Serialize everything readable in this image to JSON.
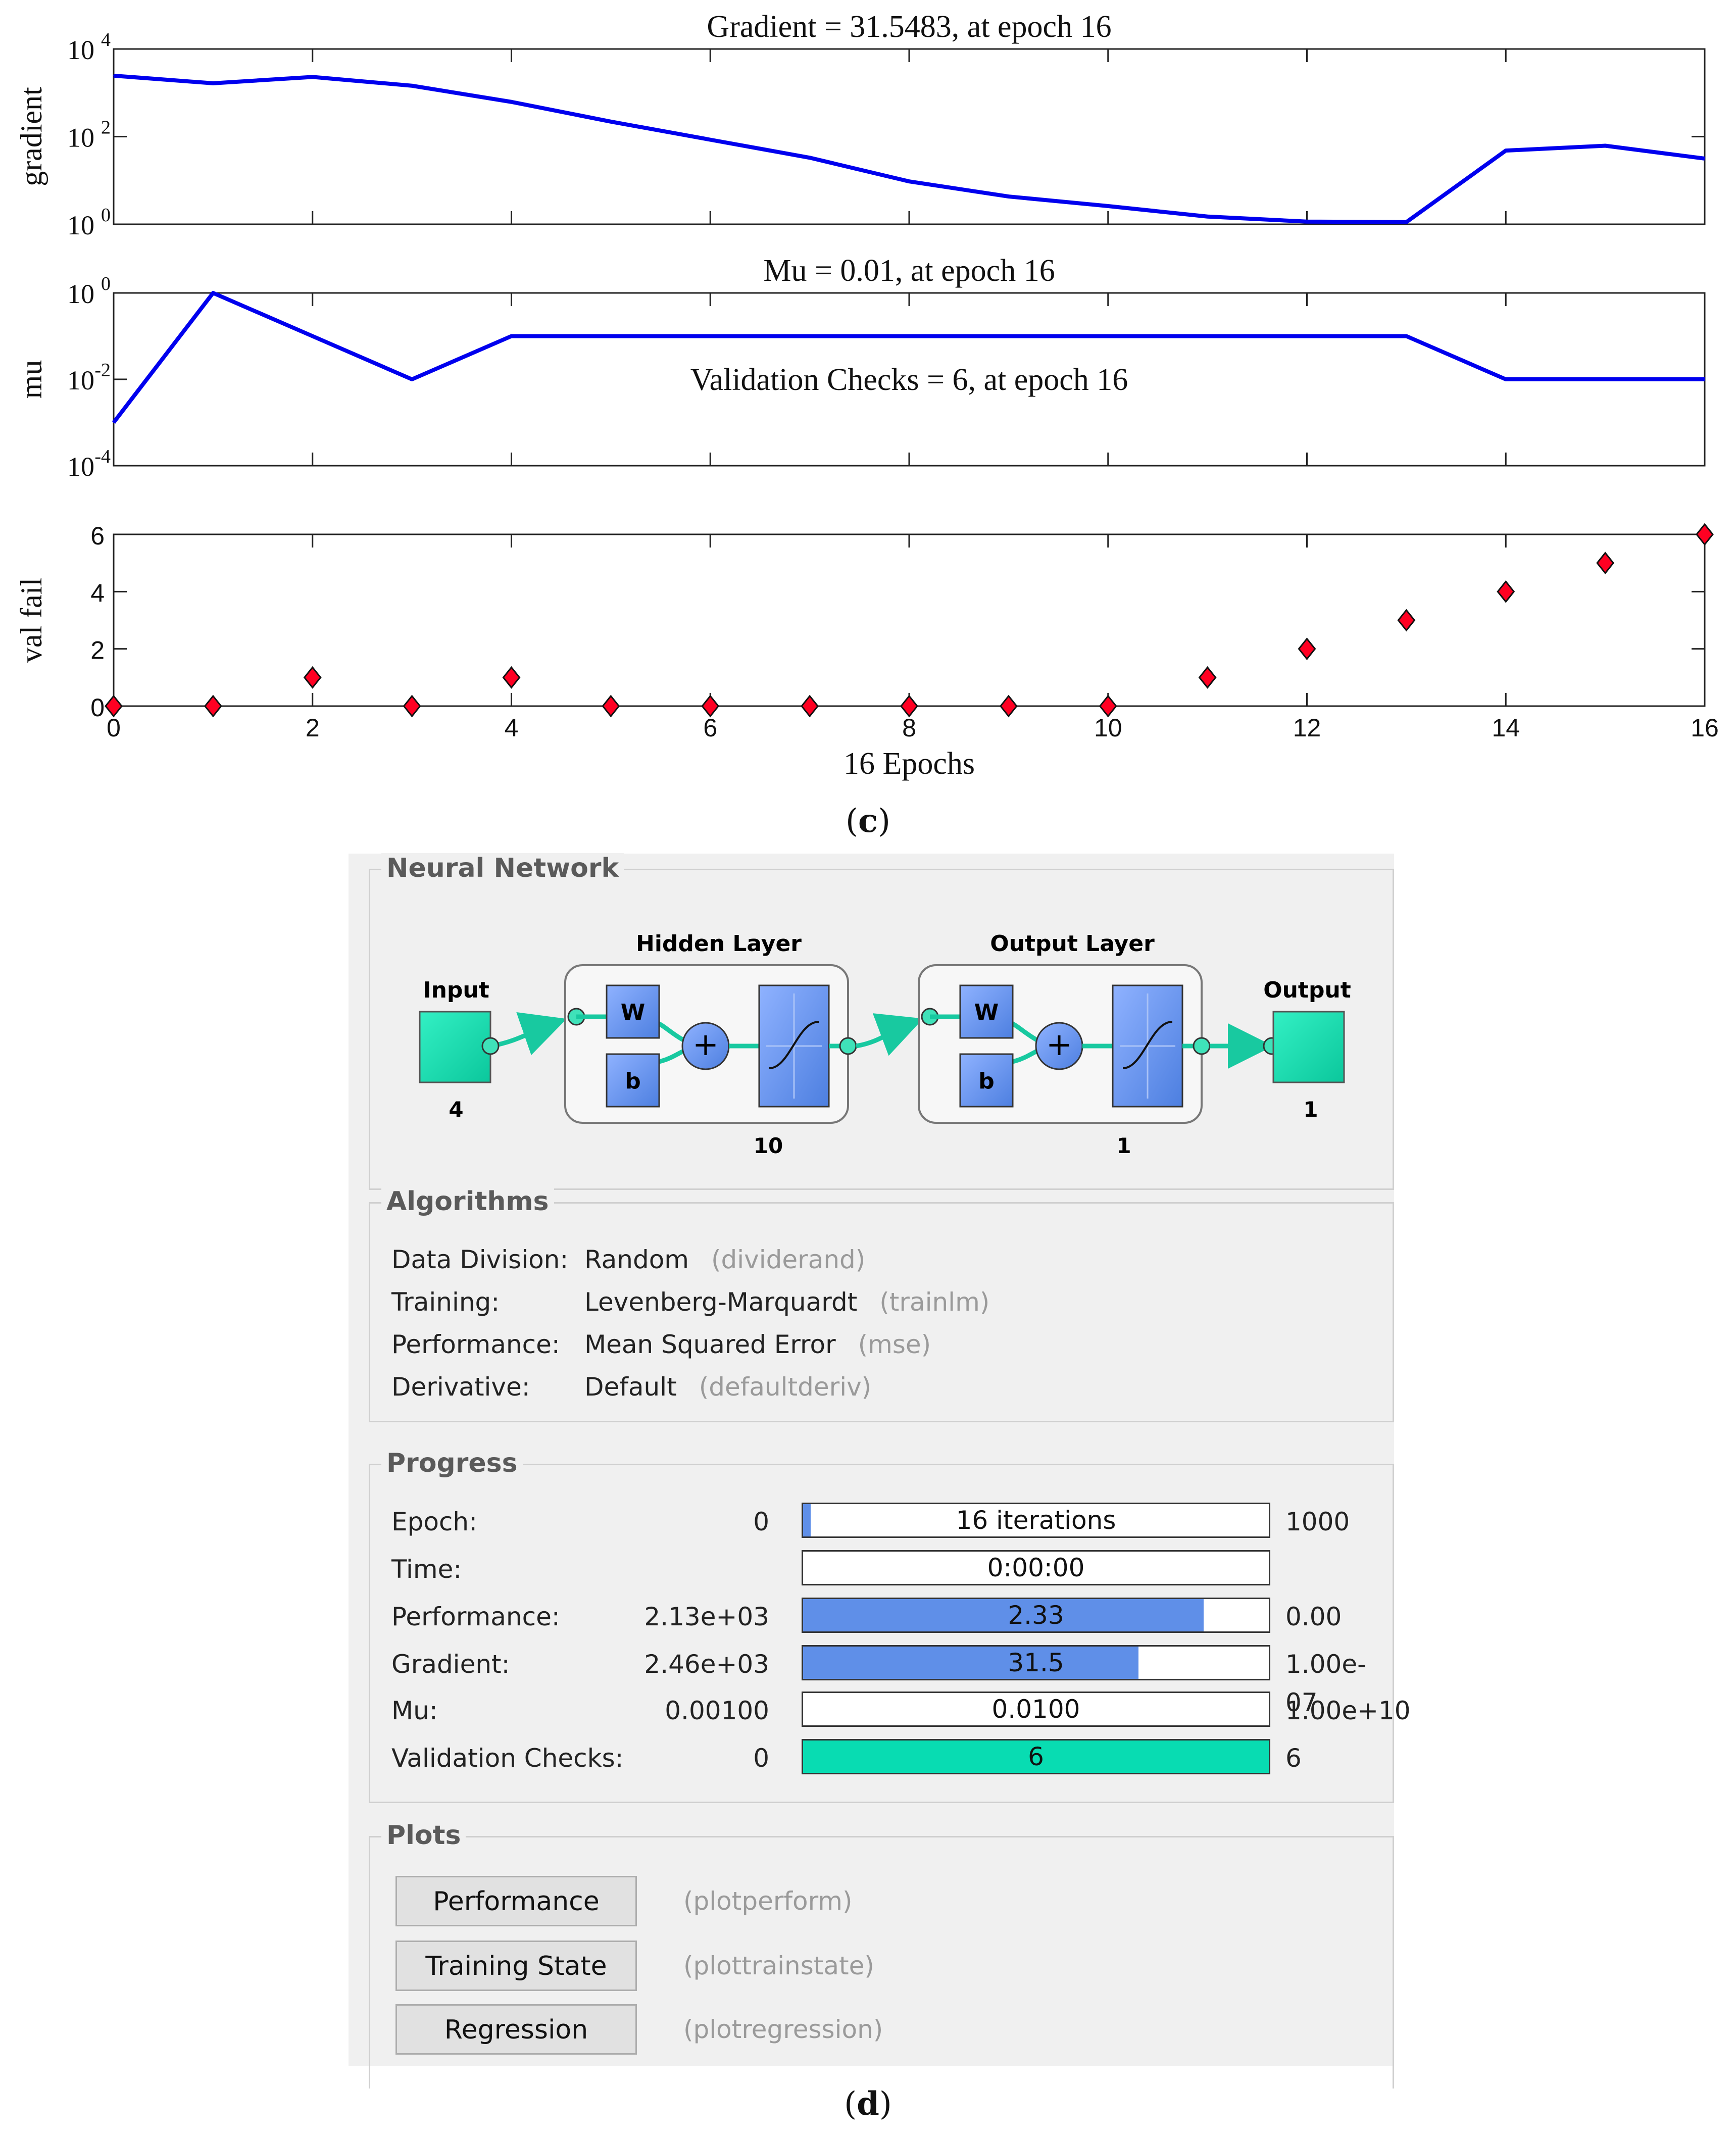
{
  "chart_data": [
    {
      "type": "line",
      "title": "Gradient = 31.5483, at epoch 16",
      "ylabel": "gradient",
      "xlabel": "",
      "yscale": "log",
      "ylim": [
        1,
        10000
      ],
      "xlim": [
        0,
        16
      ],
      "ytick_exponents": [
        "4",
        "2",
        "0"
      ],
      "x": [
        0,
        1,
        2,
        3,
        4,
        5,
        6,
        7,
        8,
        9,
        10,
        11,
        12,
        13,
        14,
        15,
        16
      ],
      "values": [
        2460,
        1650,
        2300,
        1450,
        620,
        220,
        85,
        33,
        9.5,
        4.3,
        2.6,
        1.5,
        1.15,
        1.12,
        48,
        62,
        31.5483
      ],
      "color": "#0000ee"
    },
    {
      "type": "line",
      "title": "Mu = 0.01, at epoch 16",
      "ylabel": "mu",
      "xlabel": "",
      "yscale": "log",
      "ylim": [
        0.0001,
        1
      ],
      "xlim": [
        0,
        16
      ],
      "ytick_exponents": [
        "0",
        "-2",
        "-4"
      ],
      "annotation": "Validation Checks = 6, at epoch 16",
      "x": [
        0,
        1,
        2,
        3,
        4,
        5,
        6,
        7,
        8,
        9,
        10,
        11,
        12,
        13,
        14,
        15,
        16
      ],
      "values": [
        0.001,
        1,
        0.1,
        0.01,
        0.1,
        0.1,
        0.1,
        0.1,
        0.1,
        0.1,
        0.1,
        0.1,
        0.1,
        0.1,
        0.01,
        0.01,
        0.01
      ],
      "color": "#0000ee"
    },
    {
      "type": "scatter",
      "title": "",
      "ylabel": "val fail",
      "xlabel": "16 Epochs",
      "ylim": [
        0,
        6
      ],
      "xlim": [
        0,
        16
      ],
      "xticks": [
        "0",
        "2",
        "4",
        "6",
        "8",
        "10",
        "12",
        "14",
        "16"
      ],
      "yticks": [
        "0",
        "2",
        "4",
        "6"
      ],
      "x": [
        0,
        1,
        2,
        3,
        4,
        5,
        6,
        7,
        8,
        9,
        10,
        11,
        12,
        13,
        14,
        15,
        16
      ],
      "values": [
        0,
        0,
        1,
        0,
        1,
        0,
        0,
        0,
        0,
        0,
        0,
        1,
        2,
        3,
        4,
        5,
        6
      ],
      "marker_color": "#ff0022"
    }
  ],
  "captions": {
    "c": "c",
    "d": "d"
  },
  "panel": {
    "neural_network": {
      "title": "Neural Network",
      "input_label": "Input",
      "input_size": "4",
      "hidden_label": "Hidden Layer",
      "hidden_size": "10",
      "output_layer_label": "Output Layer",
      "output_layer_size": "1",
      "output_label": "Output",
      "output_size": "1",
      "weight_glyph": "W",
      "bias_glyph": "b",
      "sum_glyph": "+"
    },
    "algorithms": {
      "title": "Algorithms",
      "rows": [
        {
          "key": "Data Division:",
          "value": "Random",
          "fn": "(dividerand)"
        },
        {
          "key": "Training:",
          "value": "Levenberg-Marquardt",
          "fn": "(trainlm)"
        },
        {
          "key": "Performance:",
          "value": "Mean Squared Error",
          "fn": "(mse)"
        },
        {
          "key": "Derivative:",
          "value": "Default",
          "fn": "(defaultderiv)"
        }
      ]
    },
    "progress": {
      "title": "Progress",
      "rows": [
        {
          "label": "Epoch:",
          "min": "0",
          "value": "16 iterations",
          "max": "1000",
          "fill": 0.016,
          "green": false
        },
        {
          "label": "Time:",
          "min": "",
          "value": "0:00:00",
          "max": "",
          "fill": 0,
          "green": false
        },
        {
          "label": "Performance:",
          "min": "2.13e+03",
          "value": "2.33",
          "max": "0.00",
          "fill": 0.86,
          "green": false
        },
        {
          "label": "Gradient:",
          "min": "2.46e+03",
          "value": "31.5",
          "max": "1.00e-07",
          "fill": 0.72,
          "green": false
        },
        {
          "label": "Mu:",
          "min": "0.00100",
          "value": "0.0100",
          "max": "1.00e+10",
          "fill": 0,
          "green": false
        },
        {
          "label": "Validation Checks:",
          "min": "0",
          "value": "6",
          "max": "6",
          "fill": 1.0,
          "green": true
        }
      ]
    },
    "plots": {
      "title": "Plots",
      "buttons": [
        {
          "label": "Performance",
          "fn": "(plotperform)"
        },
        {
          "label": "Training State",
          "fn": "(plottrainstate)"
        },
        {
          "label": "Regression",
          "fn": "(plotregression)"
        }
      ]
    }
  }
}
